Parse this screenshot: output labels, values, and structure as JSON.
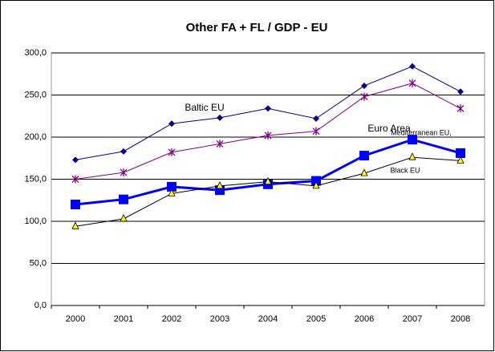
{
  "chart_data": {
    "type": "line",
    "title": "Other FA + FL / GDP - EU",
    "categories": [
      "2000",
      "2001",
      "2002",
      "2003",
      "2004",
      "2005",
      "2006",
      "2007",
      "2008"
    ],
    "series": [
      {
        "name": "Baltic  EU",
        "color": "#000080",
        "marker": "diamond",
        "values": [
          173,
          183,
          216,
          223,
          234,
          222,
          261,
          284,
          254
        ]
      },
      {
        "name": "Mediterranean EU,",
        "color": "#800080",
        "marker": "asterisk",
        "values": [
          150,
          158,
          182,
          192,
          202,
          207,
          248,
          264,
          234
        ]
      },
      {
        "name": "Euro Area",
        "color": "#0000ff",
        "marker": "square",
        "values": [
          120,
          126,
          141,
          137,
          144,
          148,
          178,
          197,
          181
        ]
      },
      {
        "name": "Black EU",
        "color": "#000000",
        "marker": "triangle",
        "values": [
          94,
          103,
          133,
          142,
          147,
          142,
          157,
          176,
          172
        ]
      }
    ],
    "ylim": [
      0,
      300
    ],
    "yticks": [
      {
        "value": 0,
        "label": "0,0"
      },
      {
        "value": 50,
        "label": "50,0"
      },
      {
        "value": 100,
        "label": "100,0"
      },
      {
        "value": 150,
        "label": "150,0"
      },
      {
        "value": 200,
        "label": "200,0"
      },
      {
        "value": 250,
        "label": "250,0"
      },
      {
        "value": 300,
        "label": "300,0"
      }
    ],
    "grid": true
  }
}
